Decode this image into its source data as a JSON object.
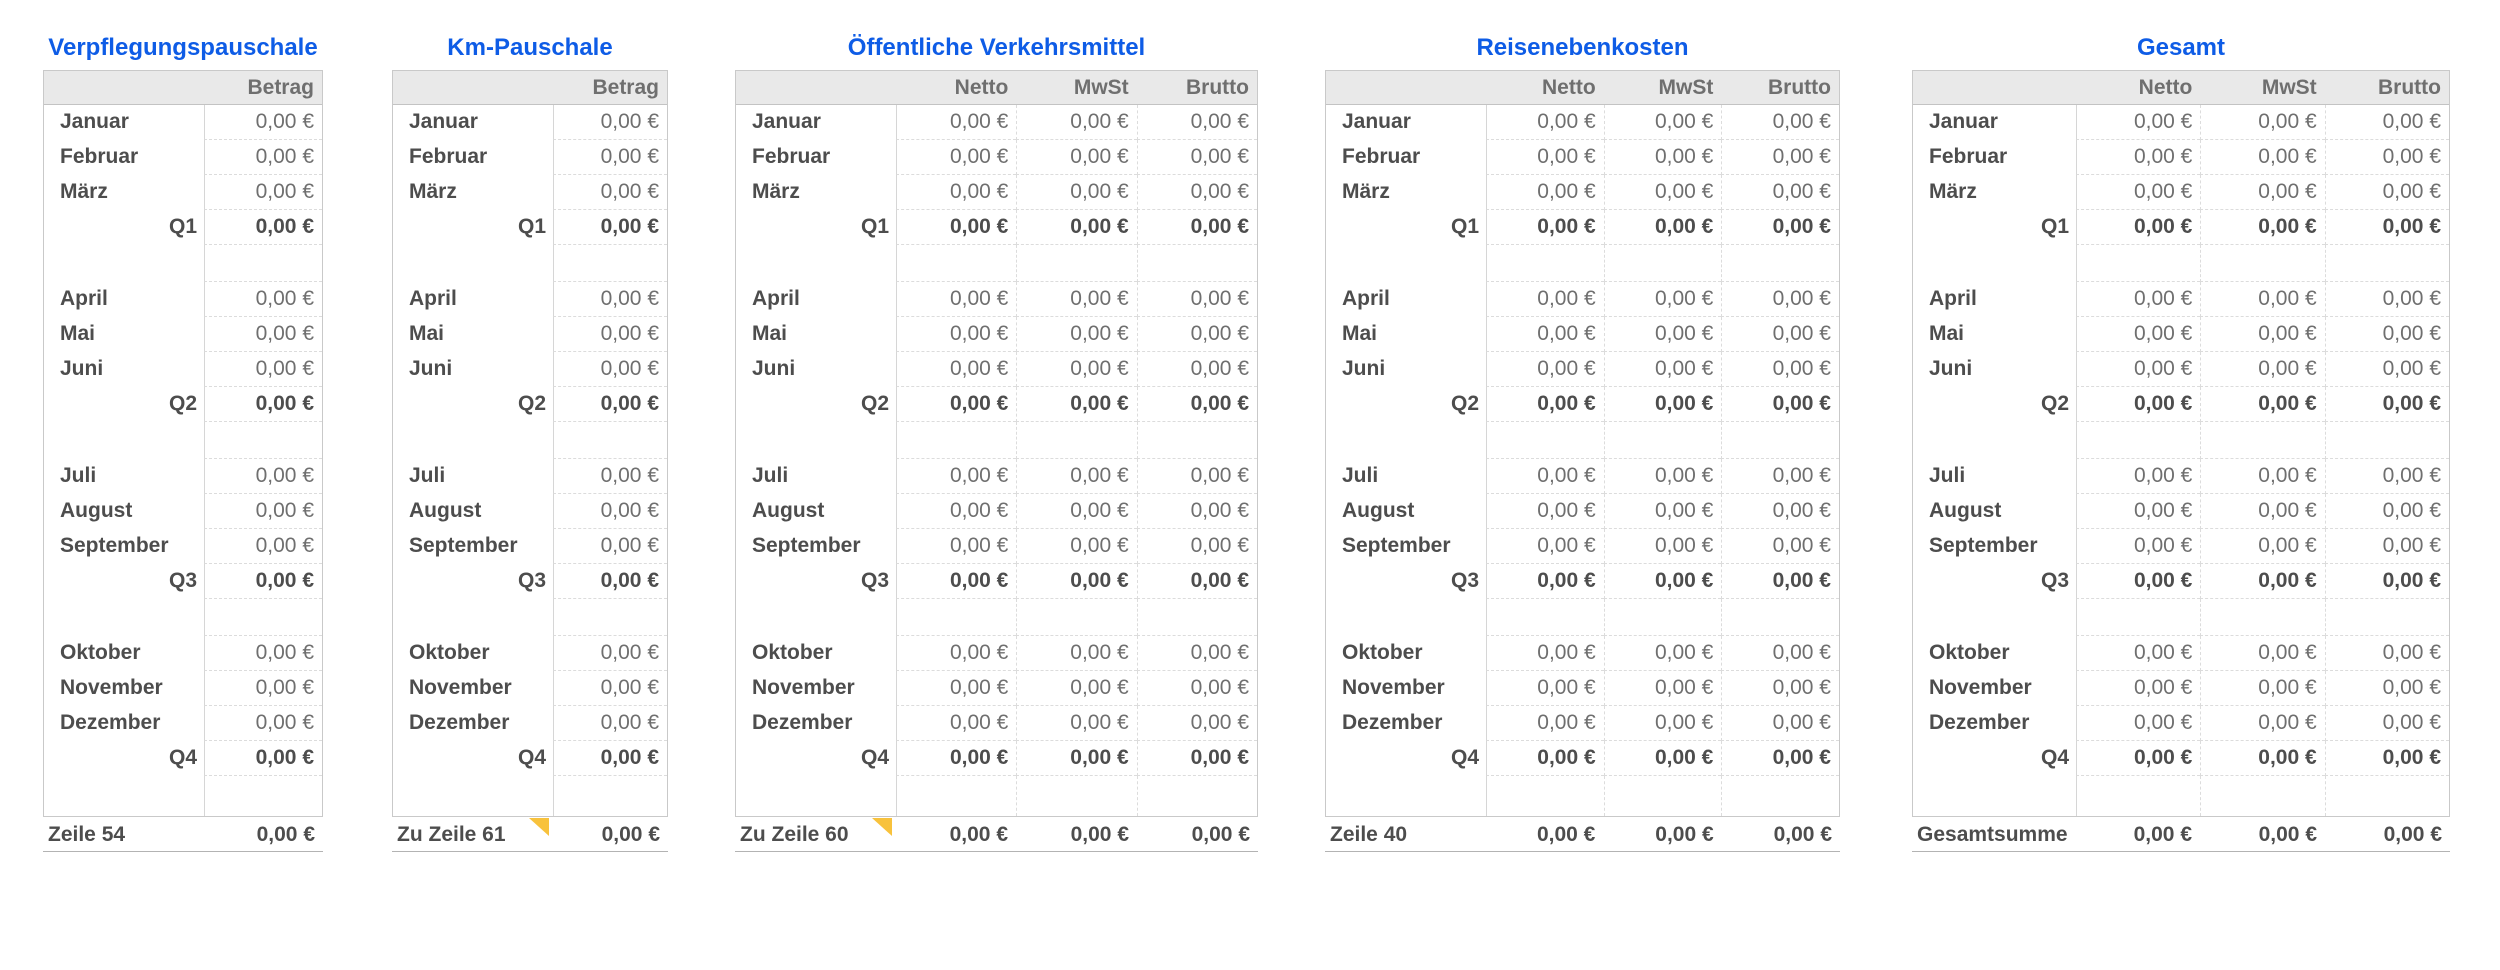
{
  "app_context": "spreadsheet-expense-report",
  "currency_zero": "0,00 €",
  "colors": {
    "title_blue": "#0e5ce6",
    "comment_marker_yellow": "#f8c23c",
    "header_background": "#e9e9e9"
  },
  "tables": [
    {
      "title": "Verpflegungspauschale",
      "columns": [
        "Betrag"
      ],
      "rows": [
        {
          "label": "Januar",
          "values": [
            "0,00 €"
          ]
        },
        {
          "label": "Februar",
          "values": [
            "0,00 €"
          ]
        },
        {
          "label": "März",
          "values": [
            "0,00 €"
          ]
        },
        {
          "label": "Q1",
          "quarter": true,
          "values": [
            "0,00 €"
          ]
        },
        {
          "spacer": true
        },
        {
          "label": "April",
          "values": [
            "0,00 €"
          ]
        },
        {
          "label": "Mai",
          "values": [
            "0,00 €"
          ]
        },
        {
          "label": "Juni",
          "values": [
            "0,00 €"
          ]
        },
        {
          "label": "Q2",
          "quarter": true,
          "values": [
            "0,00 €"
          ]
        },
        {
          "spacer": true
        },
        {
          "label": "Juli",
          "values": [
            "0,00 €"
          ]
        },
        {
          "label": "August",
          "values": [
            "0,00 €"
          ]
        },
        {
          "label": "September",
          "values": [
            "0,00 €"
          ]
        },
        {
          "label": "Q3",
          "quarter": true,
          "values": [
            "0,00 €"
          ]
        },
        {
          "spacer": true
        },
        {
          "label": "Oktober",
          "values": [
            "0,00 €"
          ]
        },
        {
          "label": "November",
          "values": [
            "0,00 €"
          ]
        },
        {
          "label": "Dezember",
          "values": [
            "0,00 €"
          ]
        },
        {
          "label": "Q4",
          "quarter": true,
          "values": [
            "0,00 €"
          ]
        },
        {
          "spacer": true
        }
      ],
      "footer": {
        "label": "Zeile 54",
        "has_note": false,
        "values": [
          "0,00 €"
        ]
      }
    },
    {
      "title": "Km-Pauschale",
      "columns": [
        "Betrag"
      ],
      "rows": [
        {
          "label": "Januar",
          "values": [
            "0,00 €"
          ]
        },
        {
          "label": "Februar",
          "values": [
            "0,00 €"
          ]
        },
        {
          "label": "März",
          "values": [
            "0,00 €"
          ]
        },
        {
          "label": "Q1",
          "quarter": true,
          "values": [
            "0,00 €"
          ]
        },
        {
          "spacer": true
        },
        {
          "label": "April",
          "values": [
            "0,00 €"
          ]
        },
        {
          "label": "Mai",
          "values": [
            "0,00 €"
          ]
        },
        {
          "label": "Juni",
          "values": [
            "0,00 €"
          ]
        },
        {
          "label": "Q2",
          "quarter": true,
          "values": [
            "0,00 €"
          ]
        },
        {
          "spacer": true
        },
        {
          "label": "Juli",
          "values": [
            "0,00 €"
          ]
        },
        {
          "label": "August",
          "values": [
            "0,00 €"
          ]
        },
        {
          "label": "September",
          "values": [
            "0,00 €"
          ]
        },
        {
          "label": "Q3",
          "quarter": true,
          "values": [
            "0,00 €"
          ]
        },
        {
          "spacer": true
        },
        {
          "label": "Oktober",
          "values": [
            "0,00 €"
          ]
        },
        {
          "label": "November",
          "values": [
            "0,00 €"
          ]
        },
        {
          "label": "Dezember",
          "values": [
            "0,00 €"
          ]
        },
        {
          "label": "Q4",
          "quarter": true,
          "values": [
            "0,00 €"
          ]
        },
        {
          "spacer": true
        }
      ],
      "footer": {
        "label": "Zu Zeile 61",
        "has_note": true,
        "values": [
          "0,00 €"
        ]
      }
    },
    {
      "title": "Öffentliche Verkehrsmittel",
      "columns": [
        "Netto",
        "MwSt",
        "Brutto"
      ],
      "rows": [
        {
          "label": "Januar",
          "values": [
            "0,00 €",
            "0,00 €",
            "0,00 €"
          ]
        },
        {
          "label": "Februar",
          "values": [
            "0,00 €",
            "0,00 €",
            "0,00 €"
          ]
        },
        {
          "label": "März",
          "values": [
            "0,00 €",
            "0,00 €",
            "0,00 €"
          ]
        },
        {
          "label": "Q1",
          "quarter": true,
          "values": [
            "0,00 €",
            "0,00 €",
            "0,00 €"
          ]
        },
        {
          "spacer": true
        },
        {
          "label": "April",
          "values": [
            "0,00 €",
            "0,00 €",
            "0,00 €"
          ]
        },
        {
          "label": "Mai",
          "values": [
            "0,00 €",
            "0,00 €",
            "0,00 €"
          ]
        },
        {
          "label": "Juni",
          "values": [
            "0,00 €",
            "0,00 €",
            "0,00 €"
          ]
        },
        {
          "label": "Q2",
          "quarter": true,
          "values": [
            "0,00 €",
            "0,00 €",
            "0,00 €"
          ]
        },
        {
          "spacer": true
        },
        {
          "label": "Juli",
          "values": [
            "0,00 €",
            "0,00 €",
            "0,00 €"
          ]
        },
        {
          "label": "August",
          "values": [
            "0,00 €",
            "0,00 €",
            "0,00 €"
          ]
        },
        {
          "label": "September",
          "values": [
            "0,00 €",
            "0,00 €",
            "0,00 €"
          ]
        },
        {
          "label": "Q3",
          "quarter": true,
          "values": [
            "0,00 €",
            "0,00 €",
            "0,00 €"
          ]
        },
        {
          "spacer": true
        },
        {
          "label": "Oktober",
          "values": [
            "0,00 €",
            "0,00 €",
            "0,00 €"
          ]
        },
        {
          "label": "November",
          "values": [
            "0,00 €",
            "0,00 €",
            "0,00 €"
          ]
        },
        {
          "label": "Dezember",
          "values": [
            "0,00 €",
            "0,00 €",
            "0,00 €"
          ]
        },
        {
          "label": "Q4",
          "quarter": true,
          "values": [
            "0,00 €",
            "0,00 €",
            "0,00 €"
          ]
        },
        {
          "spacer": true
        }
      ],
      "footer": {
        "label": "Zu Zeile 60",
        "has_note": true,
        "values": [
          "0,00 €",
          "0,00 €",
          "0,00 €"
        ]
      }
    },
    {
      "title": "Reisenebenkosten",
      "columns": [
        "Netto",
        "MwSt",
        "Brutto"
      ],
      "rows": [
        {
          "label": "Januar",
          "values": [
            "0,00 €",
            "0,00 €",
            "0,00 €"
          ]
        },
        {
          "label": "Februar",
          "values": [
            "0,00 €",
            "0,00 €",
            "0,00 €"
          ]
        },
        {
          "label": "März",
          "values": [
            "0,00 €",
            "0,00 €",
            "0,00 €"
          ]
        },
        {
          "label": "Q1",
          "quarter": true,
          "values": [
            "0,00 €",
            "0,00 €",
            "0,00 €"
          ]
        },
        {
          "spacer": true
        },
        {
          "label": "April",
          "values": [
            "0,00 €",
            "0,00 €",
            "0,00 €"
          ]
        },
        {
          "label": "Mai",
          "values": [
            "0,00 €",
            "0,00 €",
            "0,00 €"
          ]
        },
        {
          "label": "Juni",
          "values": [
            "0,00 €",
            "0,00 €",
            "0,00 €"
          ]
        },
        {
          "label": "Q2",
          "quarter": true,
          "values": [
            "0,00 €",
            "0,00 €",
            "0,00 €"
          ]
        },
        {
          "spacer": true
        },
        {
          "label": "Juli",
          "values": [
            "0,00 €",
            "0,00 €",
            "0,00 €"
          ]
        },
        {
          "label": "August",
          "values": [
            "0,00 €",
            "0,00 €",
            "0,00 €"
          ]
        },
        {
          "label": "September",
          "values": [
            "0,00 €",
            "0,00 €",
            "0,00 €"
          ]
        },
        {
          "label": "Q3",
          "quarter": true,
          "values": [
            "0,00 €",
            "0,00 €",
            "0,00 €"
          ]
        },
        {
          "spacer": true
        },
        {
          "label": "Oktober",
          "values": [
            "0,00 €",
            "0,00 €",
            "0,00 €"
          ]
        },
        {
          "label": "November",
          "values": [
            "0,00 €",
            "0,00 €",
            "0,00 €"
          ]
        },
        {
          "label": "Dezember",
          "values": [
            "0,00 €",
            "0,00 €",
            "0,00 €"
          ]
        },
        {
          "label": "Q4",
          "quarter": true,
          "values": [
            "0,00 €",
            "0,00 €",
            "0,00 €"
          ]
        },
        {
          "spacer": true
        }
      ],
      "footer": {
        "label": "Zeile 40",
        "has_note": false,
        "values": [
          "0,00 €",
          "0,00 €",
          "0,00 €"
        ]
      }
    },
    {
      "title": "Gesamt",
      "columns": [
        "Netto",
        "MwSt",
        "Brutto"
      ],
      "rows": [
        {
          "label": "Januar",
          "values": [
            "0,00 €",
            "0,00 €",
            "0,00 €"
          ]
        },
        {
          "label": "Februar",
          "values": [
            "0,00 €",
            "0,00 €",
            "0,00 €"
          ]
        },
        {
          "label": "März",
          "values": [
            "0,00 €",
            "0,00 €",
            "0,00 €"
          ]
        },
        {
          "label": "Q1",
          "quarter": true,
          "values": [
            "0,00 €",
            "0,00 €",
            "0,00 €"
          ]
        },
        {
          "spacer": true
        },
        {
          "label": "April",
          "values": [
            "0,00 €",
            "0,00 €",
            "0,00 €"
          ]
        },
        {
          "label": "Mai",
          "values": [
            "0,00 €",
            "0,00 €",
            "0,00 €"
          ]
        },
        {
          "label": "Juni",
          "values": [
            "0,00 €",
            "0,00 €",
            "0,00 €"
          ]
        },
        {
          "label": "Q2",
          "quarter": true,
          "values": [
            "0,00 €",
            "0,00 €",
            "0,00 €"
          ]
        },
        {
          "spacer": true
        },
        {
          "label": "Juli",
          "values": [
            "0,00 €",
            "0,00 €",
            "0,00 €"
          ]
        },
        {
          "label": "August",
          "values": [
            "0,00 €",
            "0,00 €",
            "0,00 €"
          ]
        },
        {
          "label": "September",
          "values": [
            "0,00 €",
            "0,00 €",
            "0,00 €"
          ]
        },
        {
          "label": "Q3",
          "quarter": true,
          "values": [
            "0,00 €",
            "0,00 €",
            "0,00 €"
          ]
        },
        {
          "spacer": true
        },
        {
          "label": "Oktober",
          "values": [
            "0,00 €",
            "0,00 €",
            "0,00 €"
          ]
        },
        {
          "label": "November",
          "values": [
            "0,00 €",
            "0,00 €",
            "0,00 €"
          ]
        },
        {
          "label": "Dezember",
          "values": [
            "0,00 €",
            "0,00 €",
            "0,00 €"
          ]
        },
        {
          "label": "Q4",
          "quarter": true,
          "values": [
            "0,00 €",
            "0,00 €",
            "0,00 €"
          ]
        },
        {
          "spacer": true
        }
      ],
      "footer": {
        "label": "Gesamtsumme",
        "has_note": false,
        "values": [
          "0,00 €",
          "0,00 €",
          "0,00 €"
        ]
      }
    }
  ]
}
